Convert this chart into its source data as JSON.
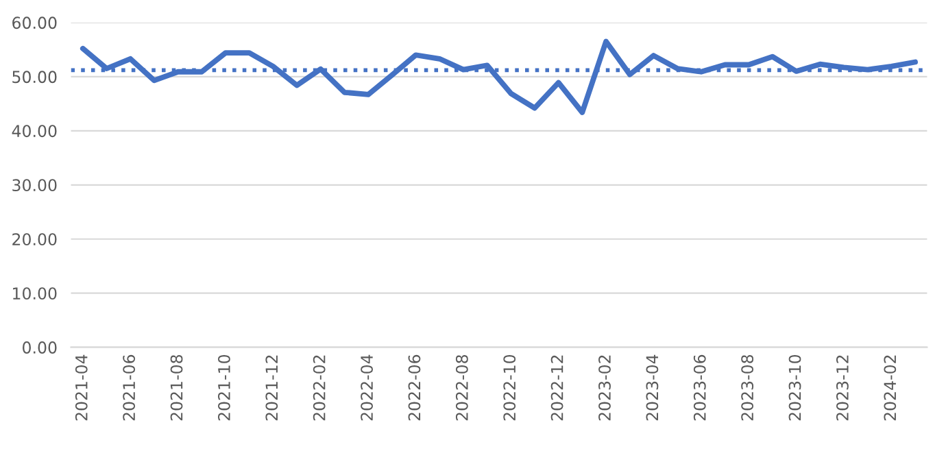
{
  "chart_data": {
    "type": "line",
    "categories": [
      "2021-04",
      null,
      "2021-06",
      null,
      "2021-08",
      null,
      "2021-10",
      null,
      "2021-12",
      null,
      "2022-02",
      null,
      "2022-04",
      null,
      "2022-06",
      null,
      "2022-08",
      null,
      "2022-10",
      null,
      "2022-12",
      null,
      "2023-02",
      null,
      "2023-04",
      null,
      "2023-06",
      null,
      "2023-08",
      null,
      "2023-10",
      null,
      "2023-12",
      null,
      "2024-02",
      null
    ],
    "series": [
      {
        "color": "#4472c4",
        "values": [
          55.2,
          51.5,
          53.3,
          49.3,
          50.9,
          50.9,
          54.4,
          54.4,
          51.9,
          48.4,
          51.4,
          47.1,
          46.7,
          50.3,
          54.0,
          53.3,
          51.3,
          52.1,
          46.9,
          44.2,
          48.9,
          43.4,
          56.5,
          50.4,
          53.9,
          51.5,
          50.9,
          52.2,
          52.2,
          53.7,
          51.0,
          52.3,
          51.7,
          51.3,
          51.9,
          52.7
        ]
      }
    ],
    "ylim": [
      0,
      60
    ],
    "yticks": [
      {
        "value": 0,
        "label": "0.00"
      },
      {
        "value": 10,
        "label": "10.00"
      },
      {
        "value": 20,
        "label": "20.00"
      },
      {
        "value": 30,
        "label": "30.00"
      },
      {
        "value": 40,
        "label": "40.00"
      },
      {
        "value": 50,
        "label": "50.00"
      },
      {
        "value": 60,
        "label": "60.00"
      }
    ],
    "ref_lines": [
      {
        "axis": "y",
        "value": 51.2,
        "color": "#4472c4",
        "line_style": "dotted"
      }
    ],
    "grid": "y",
    "marker": "none",
    "line_style": "solid"
  }
}
